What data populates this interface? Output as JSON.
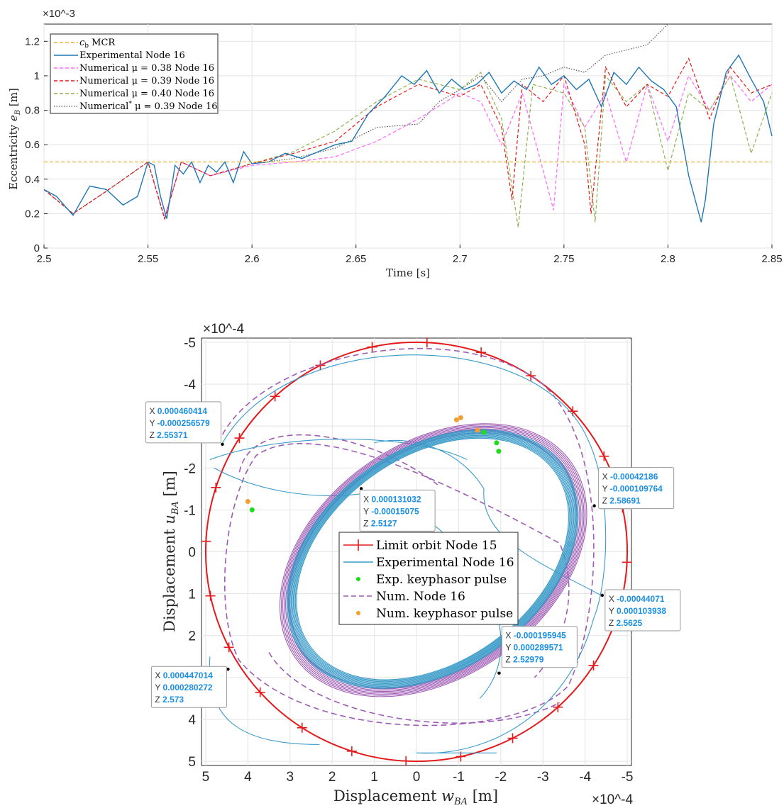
{
  "colors": {
    "mcr": "#edb120",
    "experimental": "#1f77b4",
    "num038": "#ff66ff",
    "num039": "#e8191c",
    "num040": "#8fb04e",
    "numstar": "#555555",
    "limit": "#e41a1c",
    "exp_orbit": "#3a9bc8",
    "num_orbit": "#9e5cb4",
    "exp_pulse": "#1cdc1c",
    "num_pulse": "#f0a030",
    "datatip_value": "#1a8fe3"
  },
  "chart_data": [
    {
      "type": "line",
      "ylabel": "Eccentricity e_B [m]",
      "xlabel": "Time [s]",
      "exponent": "×10^-3",
      "xlim": [
        2.5,
        2.85
      ],
      "ylim": [
        0,
        1.3
      ],
      "xticks": [
        "2.5",
        "2.55",
        "2.6",
        "2.65",
        "2.7",
        "2.75",
        "2.8",
        "2.85"
      ],
      "xtick_values": [
        2.5,
        2.55,
        2.6,
        2.65,
        2.7,
        2.75,
        2.8,
        2.85
      ],
      "yticks": [
        "0",
        "0.2",
        "0.4",
        "0.6",
        "0.8",
        "1",
        "1.2"
      ],
      "ytick_values": [
        0,
        0.2,
        0.4,
        0.6,
        0.8,
        1.0,
        1.2
      ],
      "grid": true,
      "legend_position": "top-left",
      "series": [
        {
          "name": "c_b MCR",
          "style": "dashed",
          "x": [
            2.5,
            2.85
          ],
          "y": [
            0.5,
            0.5
          ]
        },
        {
          "name": "Experimental Node 16",
          "style": "solid",
          "x": [
            2.5,
            2.506,
            2.514,
            2.522,
            2.53,
            2.538,
            2.545,
            2.55,
            2.553,
            2.556,
            2.559,
            2.563,
            2.567,
            2.571,
            2.575,
            2.579,
            2.583,
            2.587,
            2.591,
            2.596,
            2.6,
            2.608,
            2.616,
            2.624,
            2.632,
            2.64,
            2.648,
            2.656,
            2.664,
            2.672,
            2.678,
            2.684,
            2.69,
            2.696,
            2.702,
            2.708,
            2.714,
            2.72,
            2.726,
            2.732,
            2.738,
            2.744,
            2.75,
            2.756,
            2.762,
            2.768,
            2.774,
            2.78,
            2.786,
            2.792,
            2.798,
            2.804,
            2.81,
            2.816,
            2.818,
            2.822,
            2.828,
            2.834,
            2.84,
            2.846,
            2.85
          ],
          "y": [
            0.34,
            0.3,
            0.19,
            0.36,
            0.34,
            0.25,
            0.3,
            0.5,
            0.48,
            0.3,
            0.17,
            0.48,
            0.43,
            0.5,
            0.38,
            0.48,
            0.44,
            0.5,
            0.38,
            0.56,
            0.49,
            0.5,
            0.55,
            0.52,
            0.56,
            0.6,
            0.62,
            0.78,
            0.88,
            1.0,
            0.95,
            1.03,
            0.9,
            0.98,
            0.92,
            0.95,
            1.02,
            0.9,
            0.97,
            0.92,
            1.05,
            0.95,
            1.0,
            0.92,
            0.98,
            0.82,
            1.02,
            0.95,
            1.05,
            0.97,
            0.92,
            0.82,
            0.42,
            0.15,
            0.28,
            0.72,
            1.02,
            1.12,
            0.98,
            0.85,
            0.65
          ]
        },
        {
          "name": "Numerical μ = 0.38 Node 16",
          "style": "dashed",
          "x": [
            2.5,
            2.514,
            2.53,
            2.55,
            2.558,
            2.566,
            2.58,
            2.6,
            2.62,
            2.64,
            2.66,
            2.68,
            2.7,
            2.71,
            2.72,
            2.73,
            2.74,
            2.745,
            2.75,
            2.76,
            2.77,
            2.78,
            2.79,
            2.8,
            2.81,
            2.82,
            2.83,
            2.84,
            2.85
          ],
          "y": [
            0.34,
            0.2,
            0.33,
            0.5,
            0.18,
            0.5,
            0.42,
            0.48,
            0.5,
            0.53,
            0.62,
            0.75,
            0.9,
            0.85,
            0.6,
            0.9,
            0.45,
            0.22,
            0.95,
            0.7,
            0.9,
            0.5,
            0.95,
            0.62,
            1.0,
            0.8,
            1.0,
            0.85,
            0.95
          ]
        },
        {
          "name": "Numerical μ = 0.39 Node 16",
          "style": "dashed",
          "x": [
            2.5,
            2.514,
            2.53,
            2.55,
            2.558,
            2.566,
            2.58,
            2.6,
            2.62,
            2.64,
            2.66,
            2.68,
            2.7,
            2.71,
            2.72,
            2.725,
            2.73,
            2.74,
            2.75,
            2.76,
            2.763,
            2.77,
            2.78,
            2.79,
            2.8,
            2.81,
            2.82,
            2.83,
            2.84,
            2.85
          ],
          "y": [
            0.34,
            0.2,
            0.33,
            0.5,
            0.17,
            0.5,
            0.42,
            0.49,
            0.55,
            0.62,
            0.82,
            0.95,
            0.88,
            0.95,
            0.7,
            0.28,
            0.95,
            0.85,
            1.0,
            0.6,
            0.2,
            1.05,
            0.82,
            0.95,
            0.88,
            1.1,
            0.75,
            1.05,
            0.9,
            0.95
          ]
        },
        {
          "name": "Numerical μ = 0.40 Node 16",
          "style": "dashed",
          "x": [
            2.5,
            2.514,
            2.53,
            2.55,
            2.558,
            2.566,
            2.58,
            2.6,
            2.62,
            2.64,
            2.66,
            2.68,
            2.7,
            2.71,
            2.72,
            2.728,
            2.735,
            2.75,
            2.76,
            2.765,
            2.77,
            2.78,
            2.79,
            2.8,
            2.81,
            2.82,
            2.83,
            2.84,
            2.85
          ],
          "y": [
            0.34,
            0.2,
            0.33,
            0.5,
            0.17,
            0.5,
            0.42,
            0.49,
            0.56,
            0.68,
            0.85,
            0.98,
            0.92,
            1.02,
            0.75,
            0.12,
            0.95,
            0.9,
            0.7,
            0.15,
            1.0,
            0.85,
            0.95,
            0.45,
            0.9,
            0.8,
            1.0,
            0.55,
            0.9
          ]
        },
        {
          "name": "Numerical* μ = 0.39 Node 16",
          "style": "dotted",
          "x": [
            2.5,
            2.514,
            2.53,
            2.55,
            2.558,
            2.566,
            2.58,
            2.6,
            2.62,
            2.64,
            2.66,
            2.68,
            2.69,
            2.7,
            2.71,
            2.72,
            2.73,
            2.74,
            2.75,
            2.76,
            2.77,
            2.78,
            2.79,
            2.8
          ],
          "y": [
            0.34,
            0.2,
            0.33,
            0.5,
            0.17,
            0.5,
            0.42,
            0.49,
            0.52,
            0.58,
            0.7,
            0.72,
            0.85,
            0.92,
            1.0,
            0.85,
            0.98,
            1.0,
            1.05,
            1.02,
            1.12,
            1.15,
            1.18,
            1.3
          ]
        }
      ]
    },
    {
      "type": "scatter",
      "xlabel": "Displacement w_BA [m]",
      "ylabel": "Displacement u_BA [m]",
      "x_exponent": "×10^-4",
      "y_exponent": "×10^-4",
      "xlim": [
        5,
        -5
      ],
      "ylim": [
        5,
        -5
      ],
      "xticks": [
        "5",
        "4",
        "3",
        "2",
        "1",
        "0",
        "-1",
        "-2",
        "-3",
        "-4",
        "-5"
      ],
      "yticks": [
        "-5",
        "-4",
        "-3",
        "-2",
        "-1",
        "0",
        "1",
        "2",
        "3",
        "4",
        "5"
      ],
      "grid": true,
      "legend_position": "center",
      "series": [
        {
          "name": "Limit orbit Node 15",
          "shape": "circle",
          "radius": 5
        },
        {
          "name": "Experimental Node 16"
        },
        {
          "name": "Exp. keyphasor pulse"
        },
        {
          "name": "Num. Node 16"
        },
        {
          "name": "Num. keyphasor pulse"
        }
      ],
      "datatips": [
        {
          "x_label": "X",
          "x": "0.000460414",
          "y_label": "Y",
          "y": "-0.000256579",
          "z_label": "Z",
          "z": "2.55371"
        },
        {
          "x_label": "X",
          "x": "0.000131032",
          "y_label": "Y",
          "y": "-0.00015075",
          "z_label": "Z",
          "z": "2.5127"
        },
        {
          "x_label": "X",
          "x": "-0.00042186",
          "y_label": "Y",
          "y": "-0.000109764",
          "z_label": "Z",
          "z": "2.58691"
        },
        {
          "x_label": "X",
          "x": "-0.00044071",
          "y_label": "Y",
          "y": "0.000103938",
          "z_label": "Z",
          "z": "2.5625"
        },
        {
          "x_label": "X",
          "x": "-0.000195945",
          "y_label": "Y",
          "y": "0.000289571",
          "z_label": "Z",
          "z": "2.52979"
        },
        {
          "x_label": "X",
          "x": "0.000447014",
          "y_label": "Y",
          "y": "0.000280272",
          "z_label": "Z",
          "z": "2.573"
        }
      ]
    }
  ],
  "legend_top": [
    {
      "prefix": "c",
      "sub": "b",
      "suffix": " MCR"
    },
    {
      "text": "Experimental Node 16"
    },
    {
      "text": "Numerical μ = 0.38 Node 16"
    },
    {
      "text": "Numerical μ = 0.39 Node 16"
    },
    {
      "text": "Numerical μ = 0.40 Node 16"
    },
    {
      "prefix": "Numerical",
      "sup": "*",
      "suffix": " μ = 0.39 Node 16"
    }
  ]
}
